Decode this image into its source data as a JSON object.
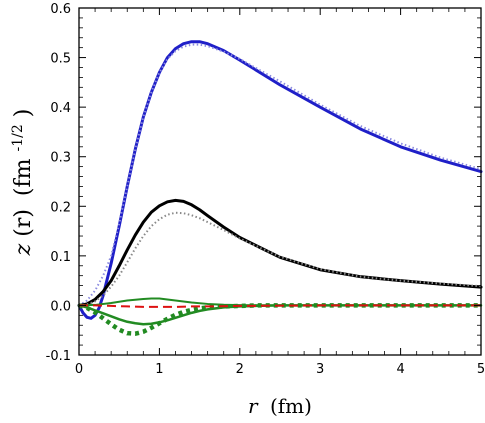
{
  "chart_data": {
    "type": "line",
    "title": "",
    "xlabel": {
      "var": "r",
      "unit": "(fm)"
    },
    "ylabel": {
      "var": "z",
      "arg": "(r)",
      "unit": "(fm",
      "exp": "-1/2",
      "close": ")"
    },
    "xlim": [
      0,
      5
    ],
    "ylim": [
      -0.1,
      0.6
    ],
    "xticks": [
      0,
      1,
      2,
      3,
      4,
      5
    ],
    "yticks": [
      -0.1,
      0.0,
      0.1,
      0.2,
      0.3,
      0.4,
      0.5,
      0.6
    ],
    "xtick_labels": [
      "0",
      "1",
      "2",
      "3",
      "4",
      "5"
    ],
    "ytick_labels": [
      "-0.1",
      "0.0",
      "0.1",
      "0.2",
      "0.3",
      "0.4",
      "0.5",
      "0.6"
    ],
    "grid": false,
    "legend": "none",
    "colors": {
      "blue": "#1f1fc8",
      "black": "#000000",
      "gray": "#888888",
      "green": "#228b22",
      "red": "#dd1111",
      "blue_light": "#8a8ae0"
    },
    "series": [
      {
        "color": "#1f1fc8",
        "style": "solid",
        "width": 3,
        "x": [
          0,
          0.05,
          0.1,
          0.15,
          0.2,
          0.25,
          0.3,
          0.4,
          0.5,
          0.6,
          0.7,
          0.8,
          0.9,
          1.0,
          1.1,
          1.2,
          1.3,
          1.4,
          1.5,
          1.6,
          1.8,
          2.0,
          2.5,
          3.0,
          3.5,
          4.0,
          4.5,
          5.0
        ],
        "y": [
          0,
          -0.015,
          -0.024,
          -0.026,
          -0.02,
          -0.005,
          0.02,
          0.085,
          0.16,
          0.24,
          0.315,
          0.38,
          0.43,
          0.47,
          0.5,
          0.518,
          0.528,
          0.532,
          0.532,
          0.528,
          0.514,
          0.495,
          0.445,
          0.4,
          0.356,
          0.32,
          0.293,
          0.27
        ]
      },
      {
        "color": "#8a8ae0",
        "style": "dotted",
        "width": 2,
        "x": [
          0,
          0.1,
          0.2,
          0.3,
          0.4,
          0.5,
          0.6,
          0.7,
          0.8,
          0.9,
          1.0,
          1.1,
          1.2,
          1.3,
          1.4,
          1.5,
          1.6,
          1.8,
          2.0,
          2.5,
          3.0,
          3.5,
          4.0,
          4.5,
          5.0
        ],
        "y": [
          0,
          0.01,
          0.03,
          0.06,
          0.1,
          0.165,
          0.24,
          0.315,
          0.38,
          0.43,
          0.47,
          0.497,
          0.513,
          0.522,
          0.526,
          0.526,
          0.523,
          0.512,
          0.497,
          0.452,
          0.405,
          0.362,
          0.327,
          0.298,
          0.275
        ]
      },
      {
        "color": "#000000",
        "style": "solid",
        "width": 3,
        "x": [
          0,
          0.1,
          0.2,
          0.3,
          0.4,
          0.5,
          0.6,
          0.7,
          0.8,
          0.9,
          1.0,
          1.1,
          1.2,
          1.3,
          1.4,
          1.5,
          1.6,
          1.8,
          2.0,
          2.5,
          3.0,
          3.5,
          4.0,
          4.5,
          5.0
        ],
        "y": [
          0,
          0.003,
          0.012,
          0.028,
          0.05,
          0.08,
          0.112,
          0.142,
          0.168,
          0.188,
          0.201,
          0.209,
          0.212,
          0.21,
          0.203,
          0.193,
          0.181,
          0.158,
          0.137,
          0.097,
          0.072,
          0.058,
          0.05,
          0.043,
          0.037
        ]
      },
      {
        "color": "#888888",
        "style": "dotted",
        "width": 2,
        "x": [
          0,
          0.1,
          0.2,
          0.3,
          0.4,
          0.5,
          0.6,
          0.7,
          0.8,
          0.9,
          1.0,
          1.1,
          1.2,
          1.3,
          1.4,
          1.5,
          1.6,
          1.8,
          2.0,
          2.5,
          3.0,
          3.5,
          4.0,
          4.5,
          5.0
        ],
        "y": [
          0,
          0.002,
          0.008,
          0.02,
          0.038,
          0.06,
          0.087,
          0.115,
          0.14,
          0.16,
          0.174,
          0.183,
          0.187,
          0.186,
          0.182,
          0.176,
          0.168,
          0.152,
          0.135,
          0.098,
          0.073,
          0.058,
          0.05,
          0.044,
          0.039
        ]
      },
      {
        "color": "#228b22",
        "style": "solid",
        "width": 2,
        "x": [
          0,
          0.2,
          0.4,
          0.6,
          0.8,
          0.9,
          1.0,
          1.1,
          1.2,
          1.4,
          1.6,
          1.8,
          2.0,
          2.5,
          3.0,
          4.0,
          5.0
        ],
        "y": [
          0,
          0.001,
          0.005,
          0.01,
          0.013,
          0.014,
          0.014,
          0.012,
          0.01,
          0.006,
          0.003,
          0.0015,
          0.0007,
          0.0001,
          0,
          0,
          0
        ]
      },
      {
        "color": "#228b22",
        "style": "solid",
        "width": 2.5,
        "x": [
          0,
          0.1,
          0.2,
          0.3,
          0.4,
          0.5,
          0.6,
          0.7,
          0.8,
          0.9,
          1.0,
          1.1,
          1.2,
          1.3,
          1.4,
          1.5,
          1.6,
          1.8,
          2.0,
          2.2,
          2.5,
          3.0,
          4.0,
          5.0
        ],
        "y": [
          0,
          -0.004,
          -0.01,
          -0.016,
          -0.022,
          -0.028,
          -0.033,
          -0.036,
          -0.038,
          -0.037,
          -0.034,
          -0.03,
          -0.025,
          -0.02,
          -0.015,
          -0.011,
          -0.008,
          -0.004,
          -0.002,
          -0.001,
          0,
          0,
          0,
          0
        ]
      },
      {
        "color": "#228b22",
        "style": "dotted-thick",
        "width": 4.5,
        "x": [
          0,
          0.1,
          0.2,
          0.3,
          0.4,
          0.5,
          0.6,
          0.7,
          0.8,
          0.9,
          1.0,
          1.1,
          1.2,
          1.3,
          1.4,
          1.5,
          1.6,
          1.8,
          2.0,
          2.2,
          2.5,
          3.0,
          4.0,
          5.0
        ],
        "y": [
          0,
          -0.005,
          -0.014,
          -0.026,
          -0.038,
          -0.049,
          -0.056,
          -0.057,
          -0.053,
          -0.045,
          -0.036,
          -0.027,
          -0.019,
          -0.013,
          -0.009,
          -0.006,
          -0.004,
          -0.002,
          -0.001,
          0,
          0,
          0,
          0,
          0
        ]
      },
      {
        "color": "#dd1111",
        "style": "dashed",
        "width": 2,
        "x": [
          0,
          0.2,
          0.4,
          0.6,
          0.8,
          1.0,
          1.2,
          1.4,
          1.6,
          2.0,
          3.0,
          4.0,
          5.0
        ],
        "y": [
          0,
          0,
          -0.001,
          -0.002,
          -0.003,
          -0.003,
          -0.003,
          -0.002,
          -0.002,
          -0.001,
          0,
          0,
          0
        ]
      }
    ]
  }
}
